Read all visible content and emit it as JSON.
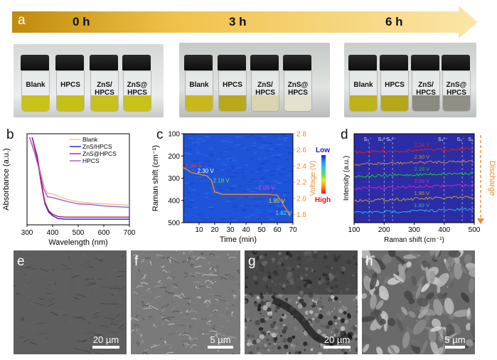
{
  "panel_letters": {
    "a": "a",
    "b": "b",
    "c": "c",
    "d": "d",
    "e": "e",
    "f": "f",
    "g": "g",
    "h": "h"
  },
  "panel_a": {
    "times": [
      "0 h",
      "3 h",
      "6 h"
    ],
    "vial_labels": [
      "Blank",
      "HPCS",
      "ZnS/\nHPCS",
      "ZnS@\nHPCS"
    ],
    "liquid_colors": {
      "0h": [
        "#c9c21a",
        "#c6bf18",
        "#c8c01c",
        "#c9c21a"
      ],
      "3h": [
        "#c8b81e",
        "#b9a81a",
        "#d9d5b0",
        "#e4e2cf"
      ],
      "6h": [
        "#bfb11c",
        "#b6a61a",
        "#8a8a80",
        "#8f8f86"
      ]
    },
    "arrow_colors": [
      "#c08a0a",
      "#fbe6a0"
    ]
  },
  "chart_data": [
    {
      "type": "line",
      "panel": "b",
      "xlabel": "Wavelength (nm)",
      "ylabel": "Absorbance (a.u.)",
      "xlim": [
        300,
        700
      ],
      "xticks": [
        300,
        400,
        500,
        600,
        700
      ],
      "series": [
        {
          "name": "Blank",
          "color": "#f2c28a",
          "x": [
            310,
            330,
            350,
            365,
            380,
            400,
            430,
            460,
            500,
            550,
            600,
            650,
            700
          ],
          "y": [
            1.25,
            1.05,
            0.8,
            0.58,
            0.45,
            0.44,
            0.4,
            0.36,
            0.33,
            0.31,
            0.3,
            0.29,
            0.28
          ]
        },
        {
          "name": "ZnS/HPCS",
          "color": "#1b1bbd",
          "x": [
            320,
            340,
            355,
            370,
            385,
            400,
            420,
            450,
            500,
            550,
            600,
            650,
            700
          ],
          "y": [
            1.25,
            0.95,
            0.6,
            0.3,
            0.18,
            0.13,
            0.09,
            0.08,
            0.08,
            0.08,
            0.08,
            0.08,
            0.08
          ]
        },
        {
          "name": "ZnS@HPCS",
          "color": "#c0126a",
          "x": [
            320,
            340,
            355,
            370,
            385,
            400,
            420,
            450,
            500,
            550,
            600,
            650,
            700
          ],
          "y": [
            1.25,
            0.98,
            0.62,
            0.32,
            0.2,
            0.15,
            0.12,
            0.11,
            0.11,
            0.11,
            0.11,
            0.11,
            0.11
          ]
        },
        {
          "name": "HPCS",
          "color": "#9b5ad8",
          "x": [
            310,
            330,
            350,
            365,
            380,
            400,
            430,
            460,
            500,
            550,
            600,
            650,
            700
          ],
          "y": [
            1.25,
            1.02,
            0.76,
            0.52,
            0.4,
            0.39,
            0.36,
            0.33,
            0.3,
            0.29,
            0.27,
            0.26,
            0.25
          ]
        }
      ]
    },
    {
      "type": "heatmap",
      "panel": "c",
      "xlabel": "Time (min)",
      "ylabel": "Raman shift (cm⁻¹)",
      "y2label": "Voltage (V)",
      "xlim": [
        0,
        70
      ],
      "xticks": [
        10,
        20,
        30,
        40,
        50,
        60,
        70
      ],
      "ylim": [
        500,
        100
      ],
      "yticks": [
        100,
        200,
        300,
        400,
        500
      ],
      "y2lim": [
        1.7,
        2.8
      ],
      "y2ticks": [
        1.8,
        2.0,
        2.2,
        2.4,
        2.6,
        2.8
      ],
      "colorbar": {
        "low": "Low",
        "high": "High",
        "colors": [
          "#1a1ad6",
          "#2e8bff",
          "#27d0e6",
          "#58e05a",
          "#f2e320",
          "#ff8a10",
          "#e81010"
        ]
      },
      "voltage_curve": {
        "x": [
          0,
          2,
          5,
          10,
          15,
          18,
          20,
          25,
          30,
          40,
          50,
          55,
          60,
          62,
          64,
          66,
          68
        ],
        "y": [
          2.38,
          2.36,
          2.32,
          2.3,
          2.28,
          2.22,
          2.08,
          2.05,
          2.05,
          2.05,
          2.05,
          2.05,
          2.04,
          1.98,
          1.92,
          1.86,
          1.78
        ]
      },
      "annotations": [
        {
          "text": "2.34 V",
          "x": 0.3,
          "v": 2.36,
          "color": "#e23c3c"
        },
        {
          "text": "2.30 V",
          "x": 8.0,
          "v": 2.3,
          "color": "#ffffff"
        },
        {
          "text": "2.18 V",
          "x": 18.0,
          "v": 2.18,
          "color": "#5ae85a"
        },
        {
          "text": "2.09 V",
          "x": 47.0,
          "v": 2.09,
          "color": "#e040e0"
        },
        {
          "text": "1.95 V",
          "x": 53.5,
          "v": 1.93,
          "color": "#e8d860"
        },
        {
          "text": "1.82 V",
          "x": 58.0,
          "v": 1.78,
          "color": "#5fe0ff"
        }
      ]
    },
    {
      "type": "line",
      "panel": "d",
      "xlabel": "Raman shift (cm⁻¹)",
      "ylabel": "Intensity (a.u.)",
      "xlim": [
        100,
        500
      ],
      "xticks": [
        100,
        200,
        300,
        400,
        500
      ],
      "side_label": "Discharge",
      "peak_labels": [
        {
          "text": "S₃⁻",
          "x": 150
        },
        {
          "text": "S₄²⁻",
          "x": 200
        },
        {
          "text": "S₆²⁻",
          "x": 228
        },
        {
          "text": "S₄²⁻",
          "x": 400
        },
        {
          "text": "S₃⁻",
          "x": 460
        },
        {
          "text": "S₈",
          "x": 493
        }
      ],
      "spectra": [
        {
          "name": "2.34 V",
          "color": "#dd2020"
        },
        {
          "name": "2.30 V",
          "color": "#c88a3a"
        },
        {
          "name": "2.18 V",
          "color": "#22c622"
        },
        {
          "name": "2.09 V",
          "color": "#d020d0"
        },
        {
          "name": "1.95 V",
          "color": "#c8a030"
        },
        {
          "name": "1.82 V",
          "color": "#26b6e0"
        }
      ]
    }
  ],
  "sem": [
    {
      "panel": "e",
      "scale": "20 µm"
    },
    {
      "panel": "f",
      "scale": "5 µm"
    },
    {
      "panel": "g",
      "scale": "20 µm"
    },
    {
      "panel": "h",
      "scale": "5 µm"
    }
  ]
}
